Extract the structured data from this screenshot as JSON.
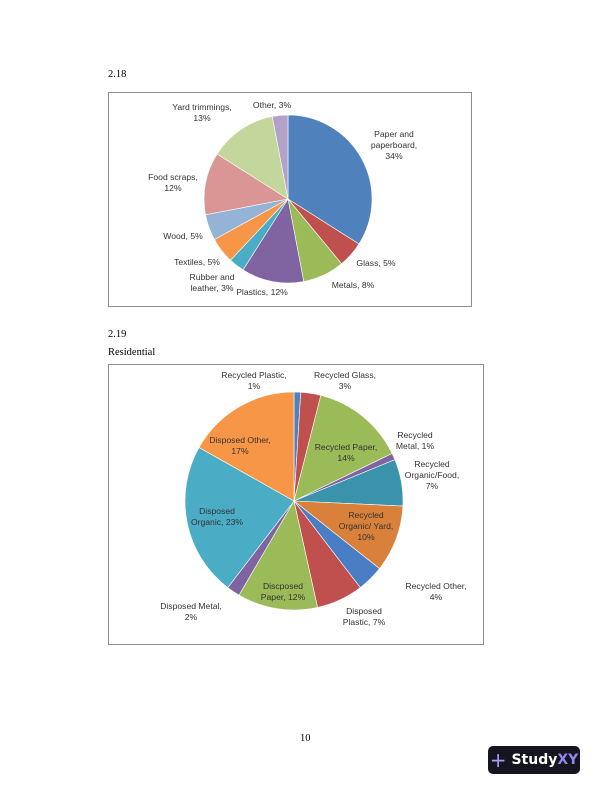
{
  "section_218": "2.18",
  "section_219": "2.19",
  "subtitle_219": "Residential",
  "page_number": "10",
  "watermark": {
    "brand_a": "Study",
    "brand_b": "XY"
  },
  "chart_data": [
    {
      "type": "pie",
      "title": "",
      "slices": [
        {
          "label": [
            "Paper and",
            "paperboard,",
            "34%"
          ],
          "category": "Paper and paperboard",
          "value": 34,
          "color": "#4f81bd"
        },
        {
          "label": [
            "Glass, 5%"
          ],
          "category": "Glass",
          "value": 5,
          "color": "#c0504d"
        },
        {
          "label": [
            "Metals, 8%"
          ],
          "category": "Metals",
          "value": 8,
          "color": "#9bbb59"
        },
        {
          "label": [
            "Plastics, 12%"
          ],
          "category": "Plastics",
          "value": 12,
          "color": "#8064a2"
        },
        {
          "label": [
            "Rubber and",
            "leather, 3%"
          ],
          "category": "Rubber and leather",
          "value": 3,
          "color": "#4bacc6"
        },
        {
          "label": [
            "Textiles, 5%"
          ],
          "category": "Textiles",
          "value": 5,
          "color": "#f79646"
        },
        {
          "label": [
            "Wood, 5%"
          ],
          "category": "Wood",
          "value": 5,
          "color": "#95b3d7"
        },
        {
          "label": [
            "Food scraps,",
            "12%"
          ],
          "category": "Food scraps",
          "value": 12,
          "color": "#d99694"
        },
        {
          "label": [
            "Yard trimmings,",
            "13%"
          ],
          "category": "Yard trimmings",
          "value": 13,
          "color": "#c3d69b"
        },
        {
          "label": [
            "Other, 3%"
          ],
          "category": "Other",
          "value": 3,
          "color": "#b3a2c7"
        }
      ]
    },
    {
      "type": "pie",
      "title": "",
      "slices": [
        {
          "label": [
            "Recycled Plastic,",
            "1%"
          ],
          "category": "Recycled Plastic",
          "value": 1,
          "color": "#4f81bd"
        },
        {
          "label": [
            "Recycled Glass,",
            "3%"
          ],
          "category": "Recycled Glass",
          "value": 3,
          "color": "#c0504d"
        },
        {
          "label": [
            "Recycled Paper,",
            "14%"
          ],
          "category": "Recycled Paper",
          "value": 14,
          "color": "#9bbb59"
        },
        {
          "label": [
            "Recycled",
            "Metal, 1%"
          ],
          "category": "Recycled Metal",
          "value": 1,
          "color": "#8064a2"
        },
        {
          "label": [
            "Recycled",
            "Organic/Food,",
            "7%"
          ],
          "category": "Recycled Organic/Food",
          "value": 7,
          "color": "#3a92ab"
        },
        {
          "label": [
            "Recycled",
            "Organic/ Yard,",
            "10%"
          ],
          "category": "Recycled Organic/ Yard",
          "value": 10,
          "color": "#d9813b"
        },
        {
          "label": [
            "Recycled Other,",
            "4%"
          ],
          "category": "Recycled Other",
          "value": 4,
          "color": "#4a7ec4"
        },
        {
          "label": [
            "Disposed",
            "Plastic, 7%"
          ],
          "category": "Disposed Plastic",
          "value": 7,
          "color": "#c0504d"
        },
        {
          "label": [
            "Discposed",
            "Paper, 12%"
          ],
          "category": "Discposed Paper",
          "value": 12,
          "color": "#9bbb59"
        },
        {
          "label": [
            "Disposed Metal,",
            "2%"
          ],
          "category": "Disposed Metal",
          "value": 2,
          "color": "#8064a2"
        },
        {
          "label": [
            "Disposed",
            "Organic, 23%"
          ],
          "category": "Disposed Organic",
          "value": 23,
          "color": "#4bacc6"
        },
        {
          "label": [
            "Disposed Other,",
            "17%"
          ],
          "category": "Disposed Other",
          "value": 17,
          "color": "#f79646"
        }
      ]
    }
  ]
}
